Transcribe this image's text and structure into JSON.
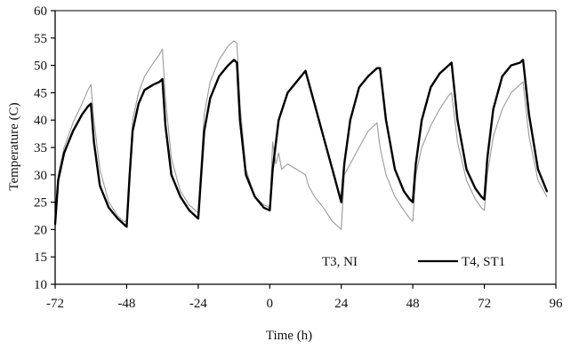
{
  "chart_data": {
    "type": "line",
    "title": "",
    "xlabel": "Time (h)",
    "ylabel": "Temperature (C)",
    "xlim": [
      -72,
      96
    ],
    "ylim": [
      10,
      60
    ],
    "xticks": [
      -72,
      -48,
      -24,
      0,
      24,
      48,
      72,
      96
    ],
    "yticks": [
      10,
      15,
      20,
      25,
      30,
      35,
      40,
      45,
      50,
      55,
      60
    ],
    "grid": false,
    "legend_position": "bottom-right",
    "series": [
      {
        "name": "T3, NI",
        "color": "#9a9a9a",
        "style": "thin-gray",
        "x": [
          -72,
          -71,
          -69,
          -66,
          -63,
          -61,
          -60,
          -59,
          -57,
          -54,
          -51,
          -49,
          -48,
          -47,
          -46,
          -44,
          -42,
          -39,
          -37,
          -36,
          -35,
          -33,
          -30,
          -27,
          -25,
          -24,
          -23,
          -22,
          -20,
          -17,
          -14,
          -12,
          -11,
          -10,
          -8,
          -5,
          -2,
          0,
          0.5,
          1,
          2,
          3,
          4,
          6,
          9,
          12,
          13,
          15,
          18,
          21,
          23,
          24,
          25,
          27,
          30,
          33,
          36,
          37,
          39,
          42,
          45,
          47,
          48,
          49,
          51,
          54,
          57,
          60,
          61,
          63,
          66,
          69,
          71,
          72,
          73,
          75,
          78,
          81,
          84,
          85,
          87,
          90,
          93
        ],
        "values": [
          22,
          30,
          35,
          39.5,
          43,
          45.5,
          46.5,
          40,
          31,
          25,
          22.5,
          21.5,
          21.5,
          31,
          40,
          45,
          48,
          50.5,
          52,
          53,
          44,
          33,
          27,
          24.5,
          23.5,
          23,
          32,
          41,
          47,
          51,
          53.5,
          54.5,
          54,
          43,
          31,
          26,
          24.5,
          24,
          30,
          36,
          32,
          34,
          31,
          32,
          31,
          30,
          28,
          26,
          24,
          21.5,
          20.5,
          20,
          30,
          32,
          35,
          38,
          39.5,
          35,
          30,
          26,
          23.5,
          22,
          21.5,
          30,
          35,
          39,
          42,
          44.5,
          45,
          36,
          29,
          25.5,
          24,
          23.5,
          30,
          37,
          42,
          45,
          46.5,
          47,
          37,
          29,
          26
        ]
      },
      {
        "name": "T4, ST1",
        "color": "#000000",
        "style": "thick-black",
        "x": [
          -72,
          -71,
          -69,
          -66,
          -63,
          -61,
          -60,
          -59,
          -57,
          -54,
          -51,
          -49,
          -48,
          -47,
          -46,
          -44,
          -42,
          -39,
          -37,
          -36,
          -35,
          -33,
          -30,
          -27,
          -25,
          -24,
          -23,
          -22,
          -20,
          -17,
          -14,
          -12,
          -11,
          -10,
          -8,
          -5,
          -2,
          0,
          1,
          3,
          6,
          9,
          12,
          15,
          18,
          21,
          24,
          25,
          27,
          30,
          33,
          36,
          37,
          39,
          42,
          45,
          47,
          48,
          49,
          51,
          54,
          57,
          60,
          61,
          63,
          66,
          69,
          71,
          72,
          73,
          75,
          78,
          81,
          84,
          85,
          87,
          90,
          93
        ],
        "values": [
          21,
          29,
          34,
          38,
          41,
          42.5,
          43,
          36,
          28,
          24,
          22,
          21,
          20.5,
          30,
          38,
          43,
          45.5,
          46.5,
          47,
          47.5,
          39,
          30,
          26,
          23.5,
          22.5,
          22,
          30,
          38,
          44,
          48,
          50,
          51,
          50.5,
          40,
          30,
          26,
          24,
          23.5,
          31,
          40,
          45,
          47,
          49,
          43,
          37,
          31,
          25,
          32,
          40,
          46,
          48,
          49.5,
          49.5,
          40,
          31,
          27,
          25.5,
          25,
          32,
          40,
          46,
          48.5,
          50,
          50.5,
          40,
          31,
          27.5,
          26,
          25.5,
          33,
          42,
          48,
          50,
          50.5,
          51,
          41,
          31,
          27
        ]
      }
    ]
  }
}
